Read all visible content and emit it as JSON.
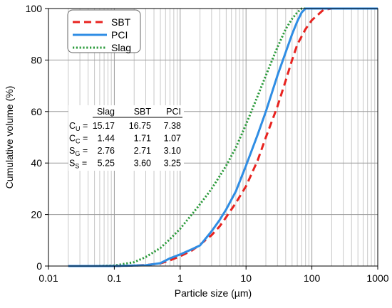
{
  "chart_data": {
    "type": "line",
    "xscale": "log",
    "xlim": [
      0.01,
      1000
    ],
    "ylim": [
      0,
      100
    ],
    "grid": true,
    "xlabel": "Particle size (µm)",
    "ylabel": "Cumulative volume (%)",
    "x_tick_labels": [
      "0.01",
      "0.1",
      "1",
      "10",
      "100",
      "1000"
    ],
    "y_tick_labels": [
      "0",
      "20",
      "40",
      "60",
      "80",
      "100"
    ],
    "legend_position": "top-left",
    "series": [
      {
        "name": "SBT",
        "color": "#e8231f",
        "dash": "dashed",
        "points": [
          [
            0.02,
            0
          ],
          [
            0.1,
            0
          ],
          [
            0.2,
            0.2
          ],
          [
            0.3,
            0.4
          ],
          [
            0.5,
            1
          ],
          [
            0.7,
            2.2
          ],
          [
            1,
            3.8
          ],
          [
            1.5,
            6
          ],
          [
            2,
            8.3
          ],
          [
            3,
            12
          ],
          [
            4,
            15.5
          ],
          [
            5,
            19
          ],
          [
            7,
            24.5
          ],
          [
            10,
            31
          ],
          [
            15,
            41
          ],
          [
            20,
            50
          ],
          [
            30,
            62
          ],
          [
            40,
            72
          ],
          [
            50,
            80
          ],
          [
            60,
            86
          ],
          [
            80,
            92
          ],
          [
            100,
            95.5
          ],
          [
            150,
            99.5
          ],
          [
            200,
            100
          ],
          [
            1000,
            100
          ]
        ]
      },
      {
        "name": "PCI",
        "color": "#2f8de4",
        "dash": "solid",
        "points": [
          [
            0.02,
            0
          ],
          [
            0.1,
            0
          ],
          [
            0.3,
            0.3
          ],
          [
            0.5,
            1.1
          ],
          [
            0.7,
            3
          ],
          [
            1,
            4.5
          ],
          [
            1.5,
            6.5
          ],
          [
            2,
            8
          ],
          [
            3,
            13.5
          ],
          [
            4,
            18
          ],
          [
            5,
            22
          ],
          [
            7,
            29
          ],
          [
            10,
            39
          ],
          [
            15,
            51
          ],
          [
            20,
            60
          ],
          [
            30,
            74
          ],
          [
            40,
            83
          ],
          [
            50,
            90
          ],
          [
            60,
            95
          ],
          [
            70,
            98.5
          ],
          [
            80,
            100
          ],
          [
            1000,
            100
          ]
        ]
      },
      {
        "name": "Slag",
        "color": "#2a9a3a",
        "dash": "dotted",
        "points": [
          [
            0.02,
            0
          ],
          [
            0.05,
            0
          ],
          [
            0.1,
            0.2
          ],
          [
            0.2,
            1.5
          ],
          [
            0.3,
            3.5
          ],
          [
            0.5,
            7
          ],
          [
            0.7,
            10.5
          ],
          [
            1,
            14.5
          ],
          [
            1.5,
            20
          ],
          [
            2,
            24
          ],
          [
            3,
            30
          ],
          [
            4,
            35
          ],
          [
            5,
            39
          ],
          [
            7,
            46
          ],
          [
            10,
            55
          ],
          [
            15,
            66
          ],
          [
            20,
            74
          ],
          [
            30,
            85
          ],
          [
            40,
            92
          ],
          [
            50,
            96
          ],
          [
            60,
            98.5
          ],
          [
            70,
            100
          ],
          [
            1000,
            100
          ]
        ]
      }
    ],
    "stats_table": {
      "columns": [
        "Slag",
        "SBT",
        "PCI"
      ],
      "rows": [
        {
          "symbol": "C",
          "sub": "U",
          "eq": "=",
          "values": [
            "15.17",
            "16.75",
            "7.38"
          ]
        },
        {
          "symbol": "C",
          "sub": "C",
          "eq": "=",
          "values": [
            "1.44",
            "1.71",
            "1.07"
          ]
        },
        {
          "symbol": "S",
          "sub": "G",
          "eq": "=",
          "values": [
            "2.76",
            "2.71",
            "3.10"
          ]
        },
        {
          "symbol": "S",
          "sub": "S",
          "eq": "=",
          "values": [
            "5.25",
            "3.60",
            "3.25"
          ]
        }
      ]
    }
  }
}
